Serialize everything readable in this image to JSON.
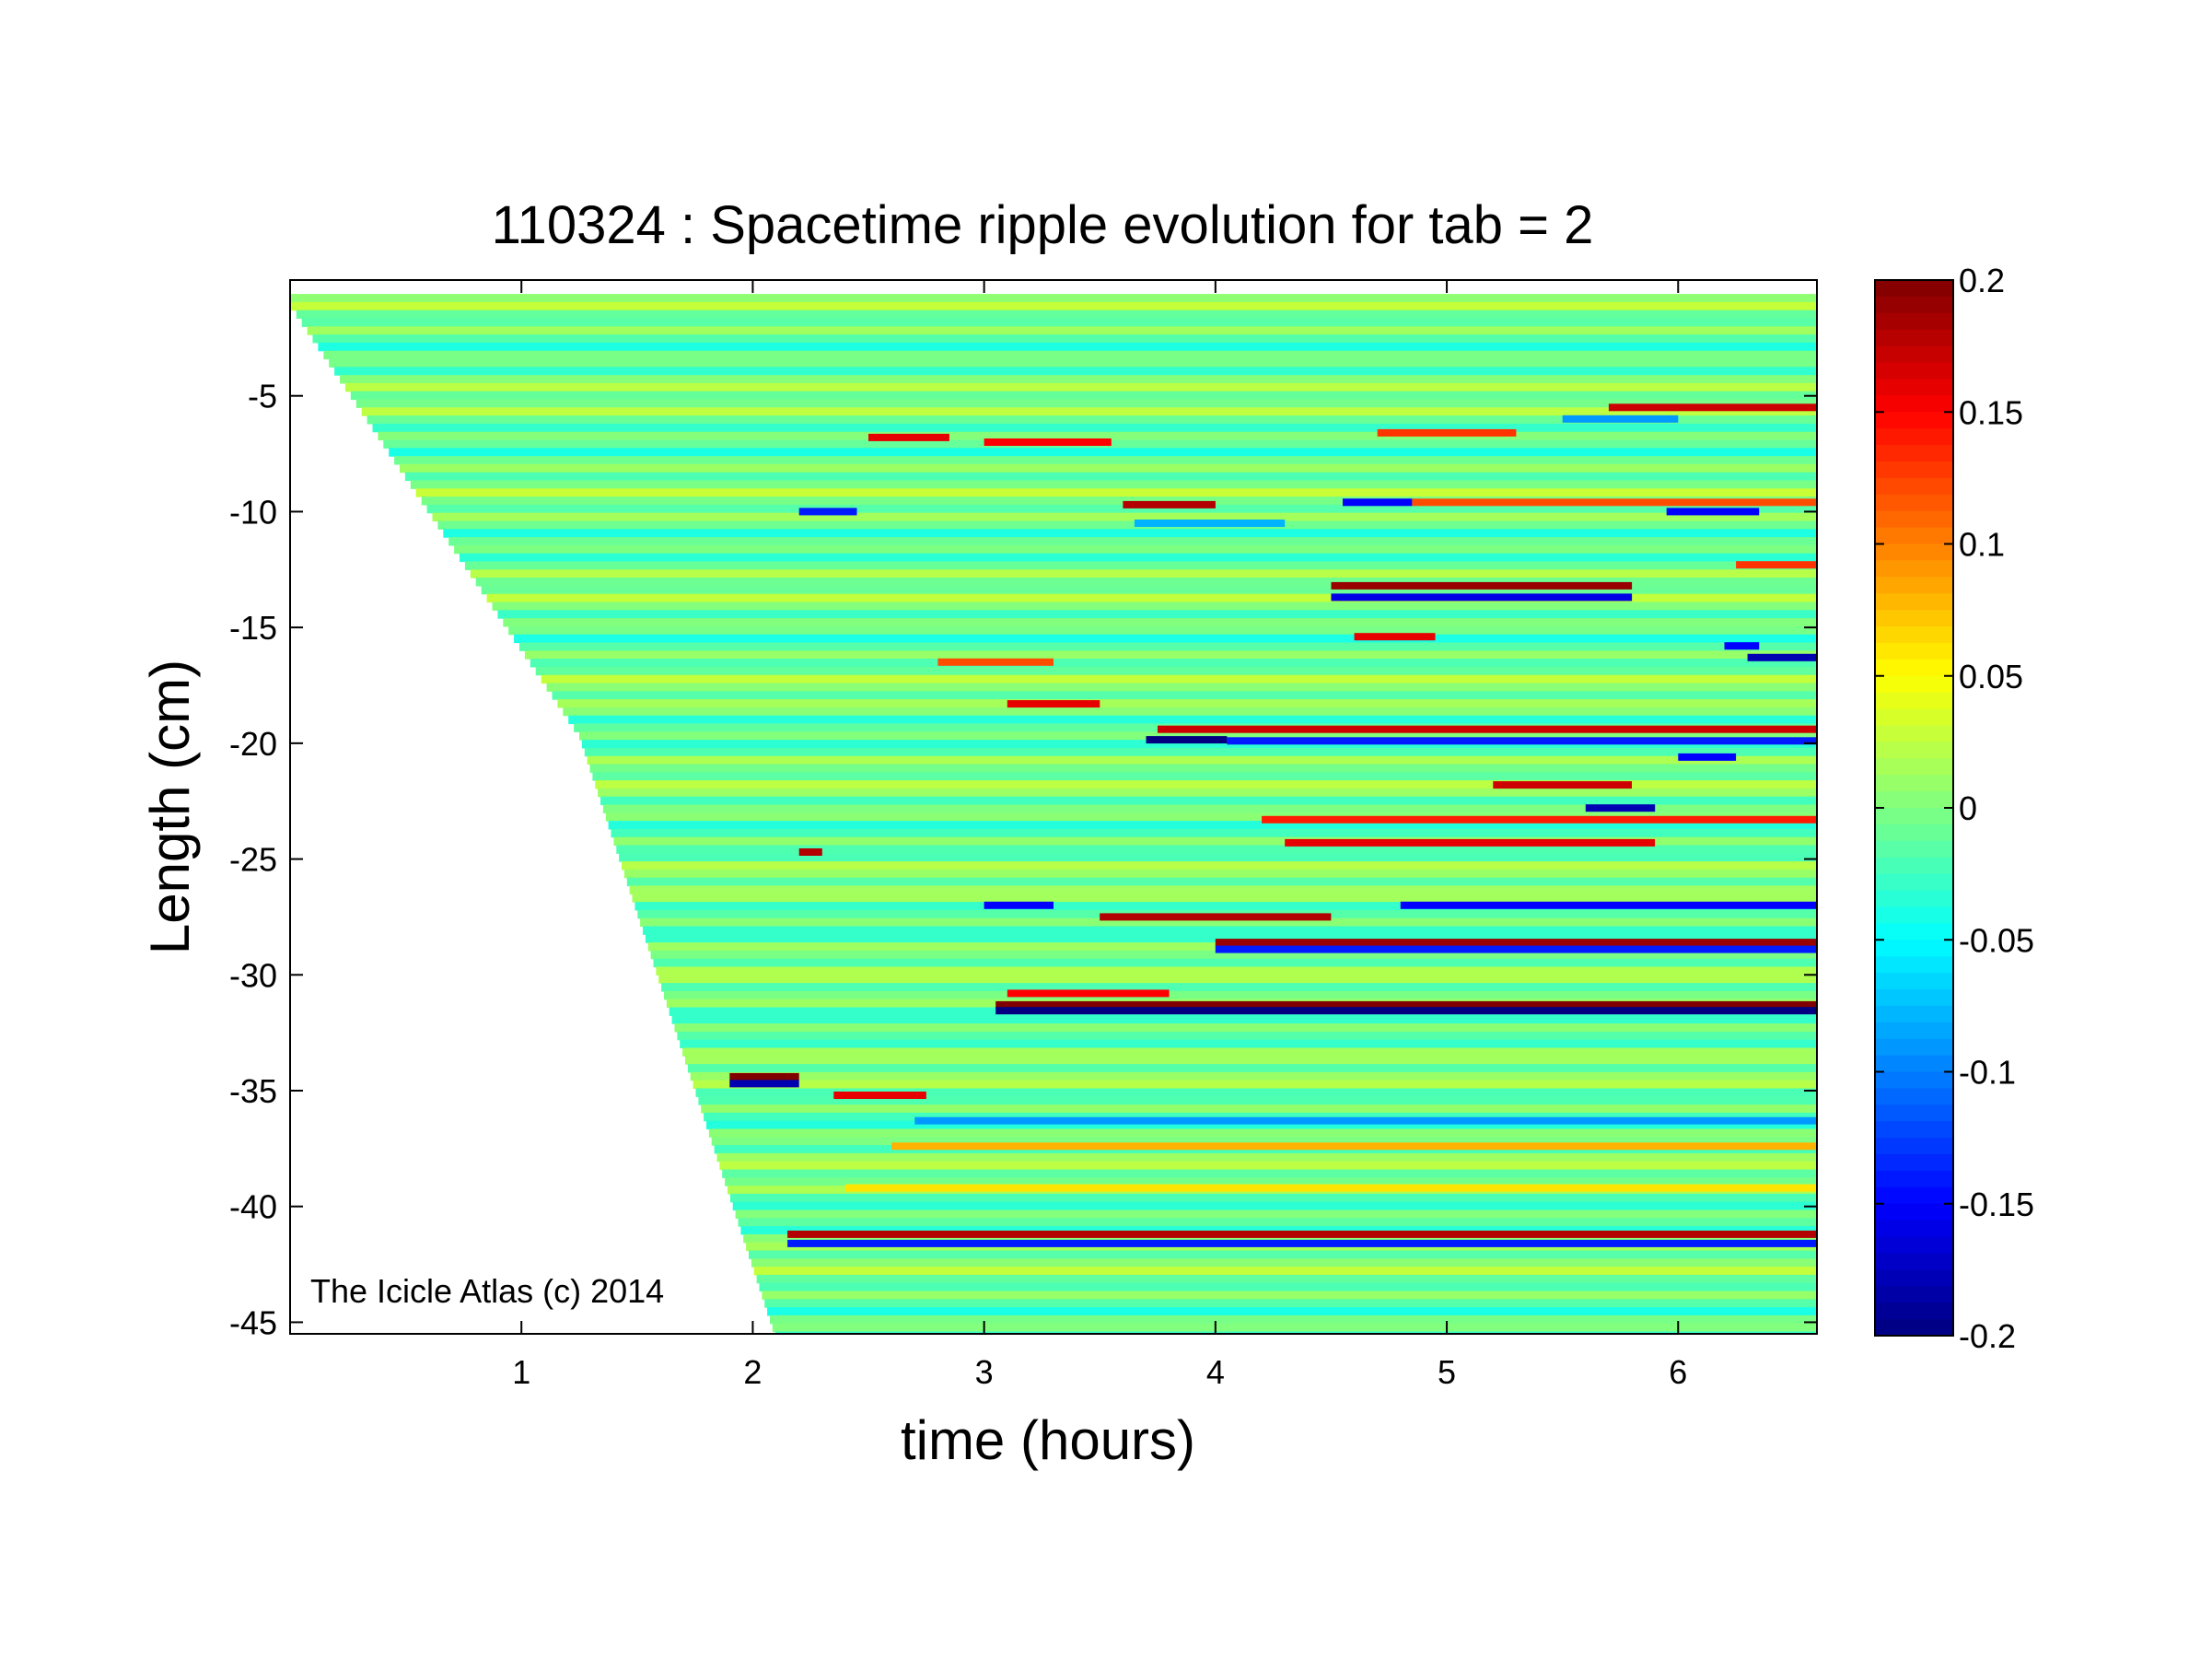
{
  "chart_data": {
    "type": "heatmap",
    "title": "110324 : Spacetime ripple evolution for tab = 2",
    "xlabel": "time (hours)",
    "ylabel": "Length (cm)",
    "xlim": [
      0,
      6.6
    ],
    "ylim": [
      -45.5,
      0
    ],
    "x_ticks": [
      1,
      2,
      3,
      4,
      5,
      6
    ],
    "x_tick_labels": [
      "1",
      "2",
      "3",
      "4",
      "5",
      "6"
    ],
    "y_ticks": [
      -5,
      -10,
      -15,
      -20,
      -25,
      -30,
      -35,
      -40,
      -45
    ],
    "y_tick_labels": [
      "-5",
      "-10",
      "-15",
      "-20",
      "-25",
      "-30",
      "-35",
      "-40",
      "-45"
    ],
    "colorbar": {
      "colormap": "jet",
      "range": [
        -0.2,
        0.2
      ],
      "ticks": [
        0.2,
        0.15,
        0.1,
        0.05,
        0,
        -0.05,
        -0.1,
        -0.15,
        -0.2
      ],
      "tick_labels": [
        "0.2",
        "0.15",
        "0.1",
        "0.05",
        "0",
        "-0.05",
        "-0.1",
        "-0.15",
        "-0.2"
      ]
    },
    "annotation": "The Icicle Atlas (c) 2014",
    "growth_front": [
      [
        0,
        -0.9
      ],
      [
        1.25,
        -19.5
      ],
      [
        2.1,
        -45.5
      ]
    ],
    "background_banding_amplitude": 0.035,
    "features": [
      {
        "y": -6.8,
        "t_start": 2.5,
        "t_end": 2.85,
        "value": 0.16
      },
      {
        "y": -7.0,
        "t_start": 3.0,
        "t_end": 3.55,
        "value": 0.15
      },
      {
        "y": -10.0,
        "t_start": 2.2,
        "t_end": 2.45,
        "value": -0.14
      },
      {
        "y": -9.7,
        "t_start": 3.6,
        "t_end": 4.0,
        "value": 0.18
      },
      {
        "y": -10.5,
        "t_start": 3.65,
        "t_end": 4.3,
        "value": -0.08
      },
      {
        "y": -9.6,
        "t_start": 4.55,
        "t_end": 4.85,
        "value": -0.15
      },
      {
        "y": -9.6,
        "t_start": 4.85,
        "t_end": 6.6,
        "value": 0.12
      },
      {
        "y": -10.0,
        "t_start": 5.95,
        "t_end": 6.35,
        "value": -0.15
      },
      {
        "y": -5.5,
        "t_start": 5.7,
        "t_end": 6.6,
        "value": 0.17
      },
      {
        "y": -6.6,
        "t_start": 4.7,
        "t_end": 5.3,
        "value": 0.13
      },
      {
        "y": -6.0,
        "t_start": 5.5,
        "t_end": 6.0,
        "value": -0.09
      },
      {
        "y": -13.2,
        "t_start": 4.5,
        "t_end": 5.8,
        "value": 0.19
      },
      {
        "y": -13.7,
        "t_start": 4.5,
        "t_end": 5.8,
        "value": -0.16
      },
      {
        "y": -15.4,
        "t_start": 4.6,
        "t_end": 4.95,
        "value": 0.16
      },
      {
        "y": -12.3,
        "t_start": 6.25,
        "t_end": 6.6,
        "value": 0.13
      },
      {
        "y": -16.3,
        "t_start": 6.3,
        "t_end": 6.6,
        "value": -0.18
      },
      {
        "y": -15.8,
        "t_start": 6.2,
        "t_end": 6.35,
        "value": -0.15
      },
      {
        "y": -16.5,
        "t_start": 2.8,
        "t_end": 3.3,
        "value": 0.12
      },
      {
        "y": -18.3,
        "t_start": 3.1,
        "t_end": 3.5,
        "value": 0.16
      },
      {
        "y": -19.4,
        "t_start": 3.75,
        "t_end": 6.6,
        "value": 0.17
      },
      {
        "y": -19.85,
        "t_start": 3.7,
        "t_end": 4.05,
        "value": -0.2
      },
      {
        "y": -19.9,
        "t_start": 4.05,
        "t_end": 6.6,
        "value": -0.14
      },
      {
        "y": -20.6,
        "t_start": 6.0,
        "t_end": 6.25,
        "value": -0.15
      },
      {
        "y": -21.8,
        "t_start": 5.2,
        "t_end": 5.8,
        "value": 0.17
      },
      {
        "y": -22.8,
        "t_start": 5.6,
        "t_end": 5.9,
        "value": -0.18
      },
      {
        "y": -23.3,
        "t_start": 4.2,
        "t_end": 6.6,
        "value": 0.14
      },
      {
        "y": -24.3,
        "t_start": 4.3,
        "t_end": 5.9,
        "value": 0.16
      },
      {
        "y": -24.7,
        "t_start": 2.2,
        "t_end": 2.3,
        "value": 0.18
      },
      {
        "y": -27.0,
        "t_start": 3.0,
        "t_end": 3.3,
        "value": -0.15
      },
      {
        "y": -27.5,
        "t_start": 3.5,
        "t_end": 4.5,
        "value": 0.18
      },
      {
        "y": -27.0,
        "t_start": 4.8,
        "t_end": 6.6,
        "value": -0.15
      },
      {
        "y": -28.6,
        "t_start": 4.0,
        "t_end": 6.6,
        "value": 0.19
      },
      {
        "y": -28.9,
        "t_start": 4.0,
        "t_end": 6.6,
        "value": -0.14
      },
      {
        "y": -30.8,
        "t_start": 3.1,
        "t_end": 3.8,
        "value": 0.15
      },
      {
        "y": -31.3,
        "t_start": 3.05,
        "t_end": 6.6,
        "value": 0.2
      },
      {
        "y": -31.55,
        "t_start": 3.05,
        "t_end": 6.6,
        "value": -0.2
      },
      {
        "y": -34.4,
        "t_start": 1.9,
        "t_end": 2.2,
        "value": 0.2
      },
      {
        "y": -34.7,
        "t_start": 1.9,
        "t_end": 2.2,
        "value": -0.18
      },
      {
        "y": -35.2,
        "t_start": 2.35,
        "t_end": 2.75,
        "value": 0.16
      },
      {
        "y": -36.3,
        "t_start": 2.7,
        "t_end": 6.6,
        "value": -0.09
      },
      {
        "y": -37.4,
        "t_start": 2.6,
        "t_end": 6.6,
        "value": 0.08
      },
      {
        "y": -39.2,
        "t_start": 2.4,
        "t_end": 6.6,
        "value": 0.06
      },
      {
        "y": -41.2,
        "t_start": 2.15,
        "t_end": 6.6,
        "value": 0.18
      },
      {
        "y": -41.6,
        "t_start": 2.15,
        "t_end": 6.6,
        "value": -0.14
      }
    ]
  }
}
